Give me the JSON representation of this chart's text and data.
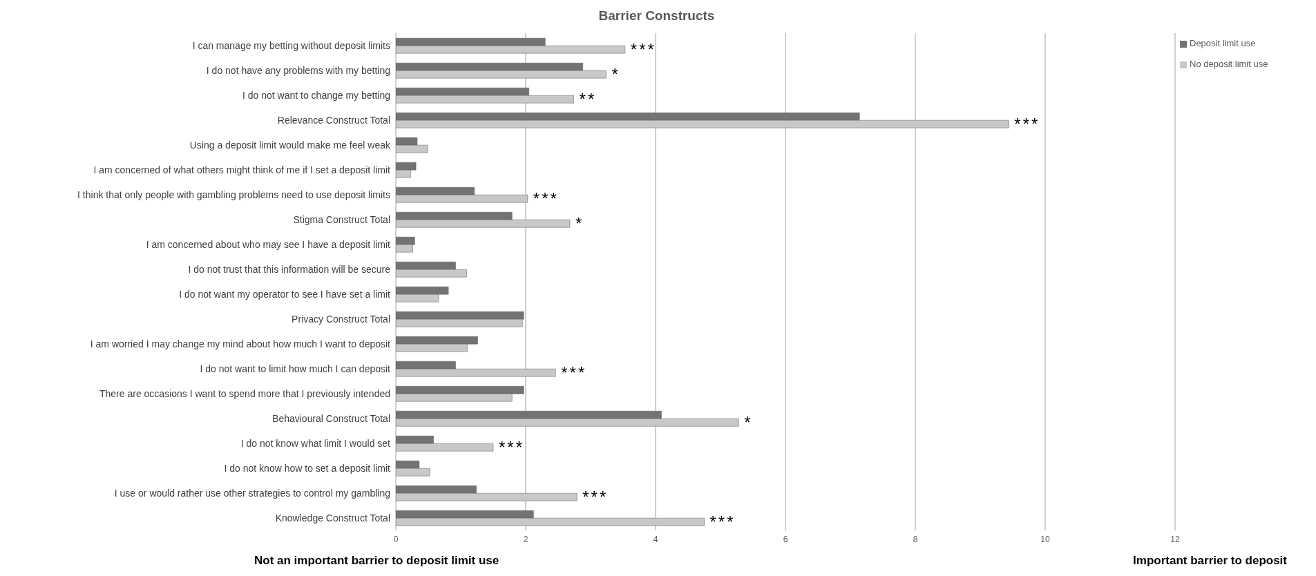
{
  "chart_data": {
    "type": "bar",
    "orientation": "horizontal",
    "title": "Barrier Constructs",
    "categories": [
      "I can manage my betting without deposit limits",
      "I do not have any problems with my betting",
      "I do not want to change my betting",
      "Relevance Construct Total",
      "Using a deposit limit would make me feel weak",
      "I am concerned of what others might think of me if I set a deposit limit",
      "I think that only people with gambling problems need to use deposit limits",
      "Stigma Construct Total",
      "I am concerned about who may see I have a deposit limit",
      "I do not trust that this information will be secure",
      "I do not want my operator to see I have set a limit",
      "Privacy Construct Total",
      "I am worried I may change my mind about how much I want to deposit",
      "I do not want to limit how much I can deposit",
      "There are occasions I want to spend more that I previously intended",
      "Behavioural Construct Total",
      "I do not know what limit I would set",
      "I do not know how to set a deposit limit",
      "I use or would rather use other strategies to control my gambling",
      "Knowledge Construct Total"
    ],
    "series": [
      {
        "name": "Deposit limit use",
        "color": "#737373",
        "values": [
          2.3,
          2.88,
          2.05,
          7.14,
          0.33,
          0.31,
          1.21,
          1.79,
          0.29,
          0.92,
          0.81,
          1.97,
          1.26,
          0.92,
          1.97,
          4.09,
          0.58,
          0.36,
          1.24,
          2.12
        ]
      },
      {
        "name": "No deposit limit use",
        "color": "#c8c8c8",
        "values": [
          3.53,
          3.24,
          2.74,
          9.44,
          0.49,
          0.23,
          2.03,
          2.68,
          0.26,
          1.09,
          0.66,
          1.95,
          1.1,
          2.46,
          1.79,
          5.28,
          1.5,
          0.52,
          2.79,
          4.75
        ]
      }
    ],
    "xlim": [
      0,
      12
    ],
    "xticks": [
      0,
      2,
      4,
      6,
      8,
      10,
      12
    ],
    "grid": "x",
    "legend": "top right",
    "annotations": [
      {
        "text": "***",
        "x": 3.53,
        "y": "I can manage my betting without deposit limits"
      },
      {
        "text": "*",
        "x": 3.24,
        "y": "I do not have any problems with my betting"
      },
      {
        "text": "**",
        "x": 2.74,
        "y": "I do not want to change my betting"
      },
      {
        "text": "***",
        "x": 9.44,
        "y": "Relevance Construct Total"
      },
      {
        "text": "***",
        "x": 2.03,
        "y": "I think that only people with gambling problems need to use deposit limits"
      },
      {
        "text": "*",
        "x": 2.68,
        "y": "Stigma Construct Total"
      },
      {
        "text": "***",
        "x": 2.46,
        "y": "I do not want to limit how much I can deposit"
      },
      {
        "text": "*",
        "x": 5.28,
        "y": "Behavioural Construct Total"
      },
      {
        "text": "***",
        "x": 1.5,
        "y": "I do not know what limit I would set"
      },
      {
        "text": "***",
        "x": 2.79,
        "y": "I use or would rather use other strategies to control my gambling"
      },
      {
        "text": "***",
        "x": 4.75,
        "y": "Knowledge Construct Total"
      },
      "Not an important barrier to deposit limit use",
      "Important barrier to deposit"
    ]
  }
}
